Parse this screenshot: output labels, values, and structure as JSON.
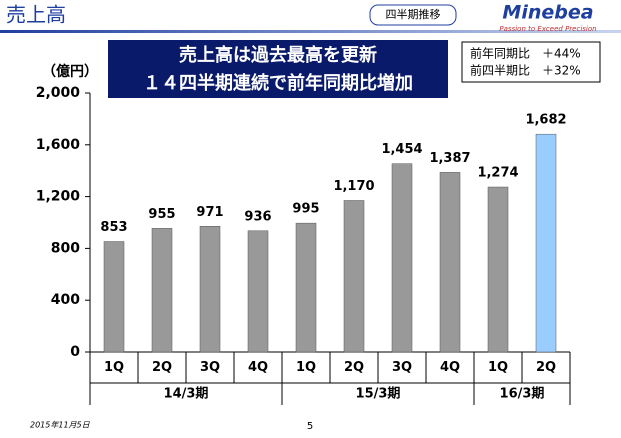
{
  "header": {
    "title": "売上高",
    "badge": "四半期推移",
    "logo": "Minebea",
    "tagline": "Passion to Exceed Precision"
  },
  "banner": [
    "売上高は過去最高を更新",
    "１４四半期連続で前年同期比増加"
  ],
  "notes": [
    "前年同期比　＋44%",
    "前四半期比　＋32%"
  ],
  "footer": {
    "date": "2015年11月5日",
    "page": "5"
  },
  "chart_data": {
    "type": "bar",
    "y_label": "（億円）",
    "categories": [
      "1Q",
      "2Q",
      "3Q",
      "4Q",
      "1Q",
      "2Q",
      "3Q",
      "4Q",
      "1Q",
      "2Q"
    ],
    "groups": [
      {
        "label": "14/3期",
        "count": 4
      },
      {
        "label": "15/3期",
        "count": 4
      },
      {
        "label": "16/3期",
        "count": 2
      }
    ],
    "values": [
      853,
      955,
      971,
      936,
      995,
      1170,
      1454,
      1387,
      1274,
      1682
    ],
    "value_labels": [
      "853",
      "955",
      "971",
      "936",
      "995",
      "1,170",
      "1,454",
      "1,387",
      "1,274",
      "1,682"
    ],
    "colors": [
      "#999999",
      "#999999",
      "#999999",
      "#999999",
      "#999999",
      "#999999",
      "#999999",
      "#999999",
      "#999999",
      "#99ccff"
    ],
    "ylim": [
      0,
      2000
    ],
    "yticks": [
      0,
      400,
      800,
      {
        "value": 1200,
        "label": "1,200"
      },
      {
        "value": 1600,
        "label": "1,600"
      },
      {
        "value": 2000,
        "label": "2,000"
      }
    ]
  }
}
